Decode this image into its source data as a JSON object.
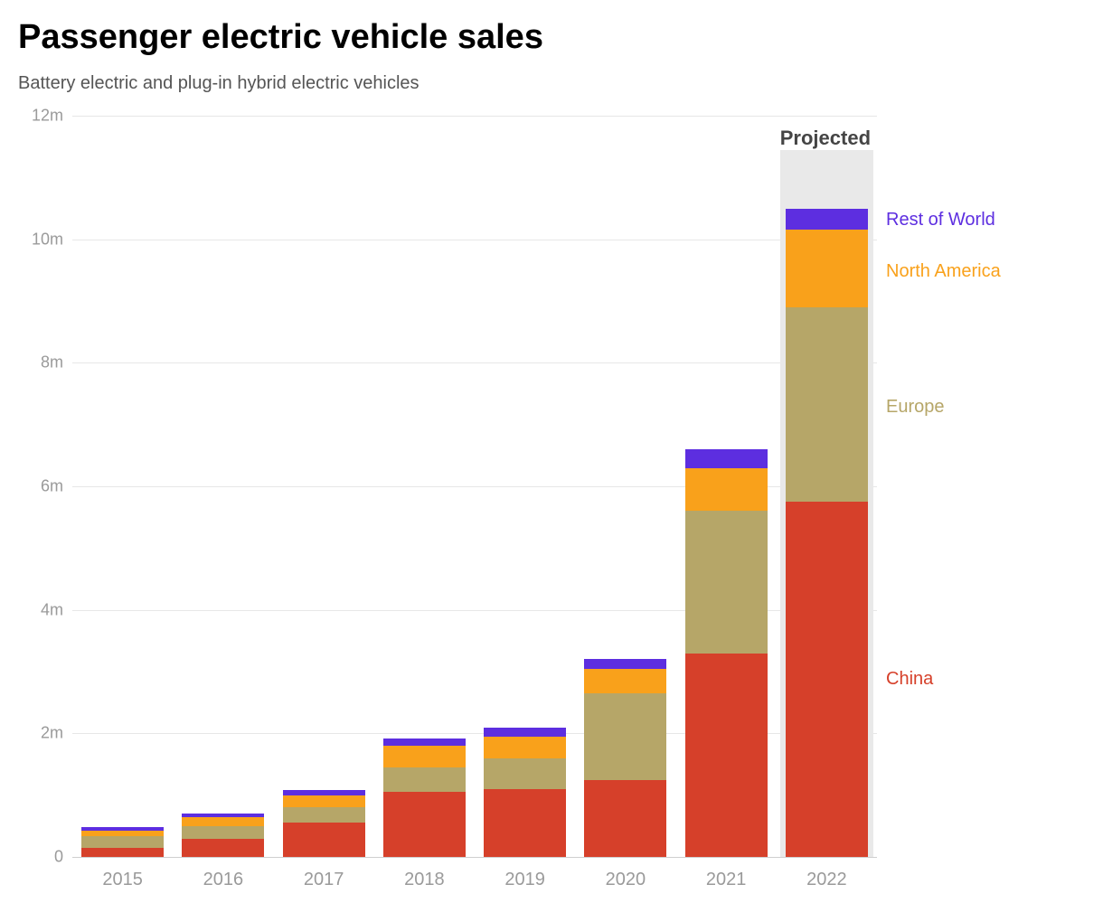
{
  "title": "Passenger electric vehicle sales",
  "subtitle": "Battery electric and plug-in hybrid electric vehicles",
  "chart": {
    "type": "stacked-bar",
    "background_color": "#ffffff",
    "grid_color": "#e7e7e7",
    "axis_label_color": "#9a9a9a",
    "axis_label_fontsize": 18,
    "ylim": [
      0,
      12
    ],
    "ytick_step": 2,
    "yticks": [
      0,
      2,
      4,
      6,
      8,
      10,
      12
    ],
    "ytick_labels": [
      "0",
      "2m",
      "4m",
      "6m",
      "8m",
      "10m",
      "12m"
    ],
    "y_unit": "m",
    "categories": [
      "2015",
      "2016",
      "2017",
      "2018",
      "2019",
      "2020",
      "2021",
      "2022"
    ],
    "bar_width": 0.82,
    "series": [
      {
        "name": "China",
        "color": "#d6402a"
      },
      {
        "name": "Europe",
        "color": "#b6a668"
      },
      {
        "name": "North America",
        "color": "#f9a11b"
      },
      {
        "name": "Rest of World",
        "color": "#5d2ee0"
      }
    ],
    "values": [
      [
        0.15,
        0.18,
        0.1,
        0.05
      ],
      [
        0.3,
        0.2,
        0.15,
        0.05
      ],
      [
        0.55,
        0.25,
        0.2,
        0.08
      ],
      [
        1.05,
        0.4,
        0.35,
        0.12
      ],
      [
        1.1,
        0.5,
        0.35,
        0.15
      ],
      [
        1.25,
        1.4,
        0.4,
        0.15
      ],
      [
        3.3,
        2.3,
        0.7,
        0.3
      ],
      [
        5.75,
        3.15,
        1.25,
        0.35
      ]
    ],
    "projected": {
      "label": "Projected",
      "index": 7,
      "bg_color": "#e9e9e9",
      "label_color": "#454545",
      "label_fontsize": 22
    },
    "legend": {
      "fontsize": 20,
      "items": [
        {
          "label": "Rest of World",
          "color": "#5d2ee0",
          "y_value": 10.33
        },
        {
          "label": "North America",
          "color": "#f9a11b",
          "y_value": 9.5
        },
        {
          "label": "Europe",
          "color": "#b6a668",
          "y_value": 7.3
        },
        {
          "label": "China",
          "color": "#d6402a",
          "y_value": 2.9
        }
      ]
    }
  }
}
